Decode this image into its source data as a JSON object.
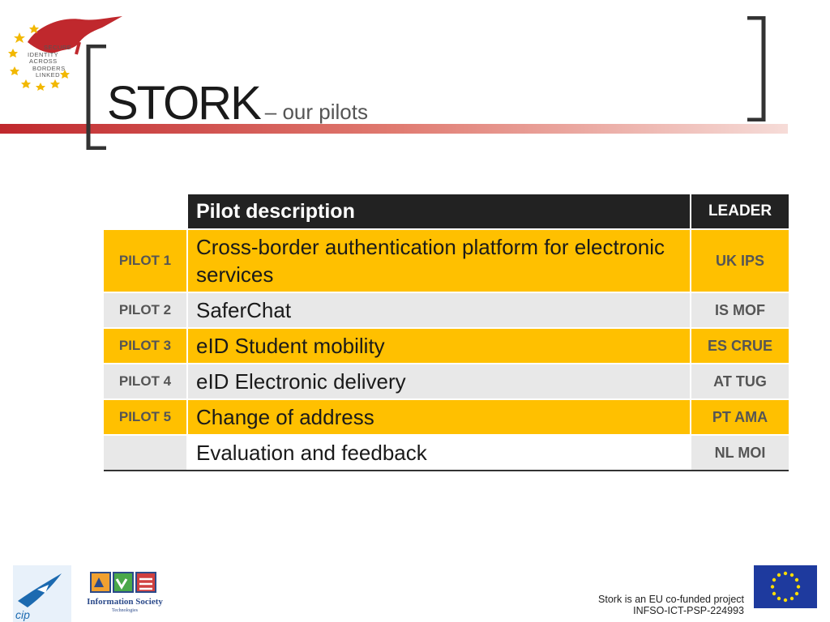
{
  "header": {
    "logo_lines": [
      "SECURE",
      "IDENTITY",
      "ACROSS",
      "BORDERS",
      "LINKED"
    ],
    "title_main": "STORK",
    "title_sub": "– our pilots"
  },
  "table": {
    "headers": {
      "pilot": "",
      "description": "Pilot description",
      "leader": "LEADER"
    },
    "rows": [
      {
        "pilot": "PILOT 1",
        "description": "Cross-border authentication platform for electronic services",
        "leader": "UK IPS"
      },
      {
        "pilot": "PILOT 2",
        "description": "SaferChat",
        "leader": "IS MOF"
      },
      {
        "pilot": "PILOT 3",
        "description": "eID Student mobility",
        "leader": "ES CRUE"
      },
      {
        "pilot": "PILOT 4",
        "description": "eID Electronic delivery",
        "leader": "AT TUG"
      },
      {
        "pilot": "PILOT 5",
        "description": "Change of address",
        "leader": "PT AMA"
      },
      {
        "pilot": "",
        "description": "Evaluation and feedback",
        "leader": "NL MOI"
      }
    ]
  },
  "footer": {
    "cip_logo_text": "cip",
    "ist_label": "Information Society",
    "ist_sub": "Technologies",
    "line1": "Stork is an EU co-funded project",
    "line2": "INFSO-ICT-PSP-224993"
  },
  "colors": {
    "accent_red": "#c0282d",
    "highlight_yellow": "#ffc000",
    "row_gray": "#e8e8e8",
    "header_dark": "#222222",
    "eu_blue": "#1e3a9e",
    "eu_gold": "#ffdd00"
  },
  "icons": [
    "stork-logo-icon",
    "bracket-left-icon",
    "bracket-right-icon",
    "cip-logo-icon",
    "ist-logo-icon",
    "eu-flag-icon"
  ]
}
